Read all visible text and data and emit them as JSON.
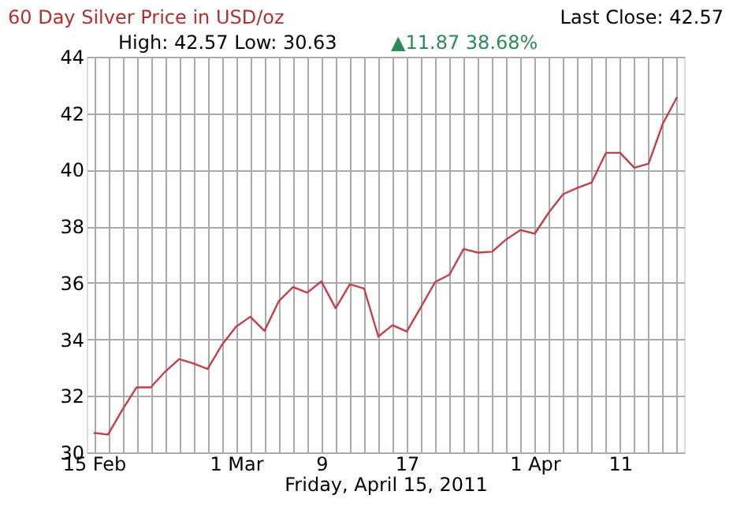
{
  "chart_data": {
    "type": "line",
    "title": "60 Day Silver Price in USD/oz",
    "subtitle": "High: 42.57 Low: 30.63",
    "annotations": [
      "Last Close: 42.57",
      "▲11.87 38.68%"
    ],
    "xlabel": "Friday, April 15, 2011",
    "categories": [
      "15 Feb",
      null,
      null,
      null,
      null,
      null,
      null,
      null,
      null,
      null,
      "1 Mar",
      null,
      null,
      null,
      null,
      null,
      "9",
      null,
      null,
      null,
      null,
      null,
      "17",
      null,
      null,
      null,
      null,
      null,
      null,
      null,
      null,
      "1 Apr",
      null,
      null,
      null,
      null,
      null,
      "11",
      null,
      null,
      null,
      null
    ],
    "series": [
      {
        "color": "#c0404a",
        "values": [
          30.69,
          30.63,
          31.5,
          32.3,
          32.3,
          32.85,
          33.3,
          33.15,
          32.95,
          33.8,
          34.45,
          34.8,
          34.3,
          35.35,
          35.85,
          35.65,
          36.05,
          35.1,
          35.95,
          35.8,
          34.1,
          34.5,
          34.28,
          35.14,
          36.03,
          36.29,
          37.2,
          37.07,
          37.1,
          37.54,
          37.87,
          37.74,
          38.5,
          39.14,
          39.36,
          39.55,
          40.6,
          40.6,
          40.07,
          40.22,
          41.63,
          42.57
        ]
      }
    ],
    "ylim": [
      30,
      44
    ],
    "yticks": [
      30,
      32,
      34,
      36,
      38,
      40,
      42,
      44
    ],
    "grid": true,
    "legend": false,
    "marker": "none",
    "line_style": "solid"
  }
}
